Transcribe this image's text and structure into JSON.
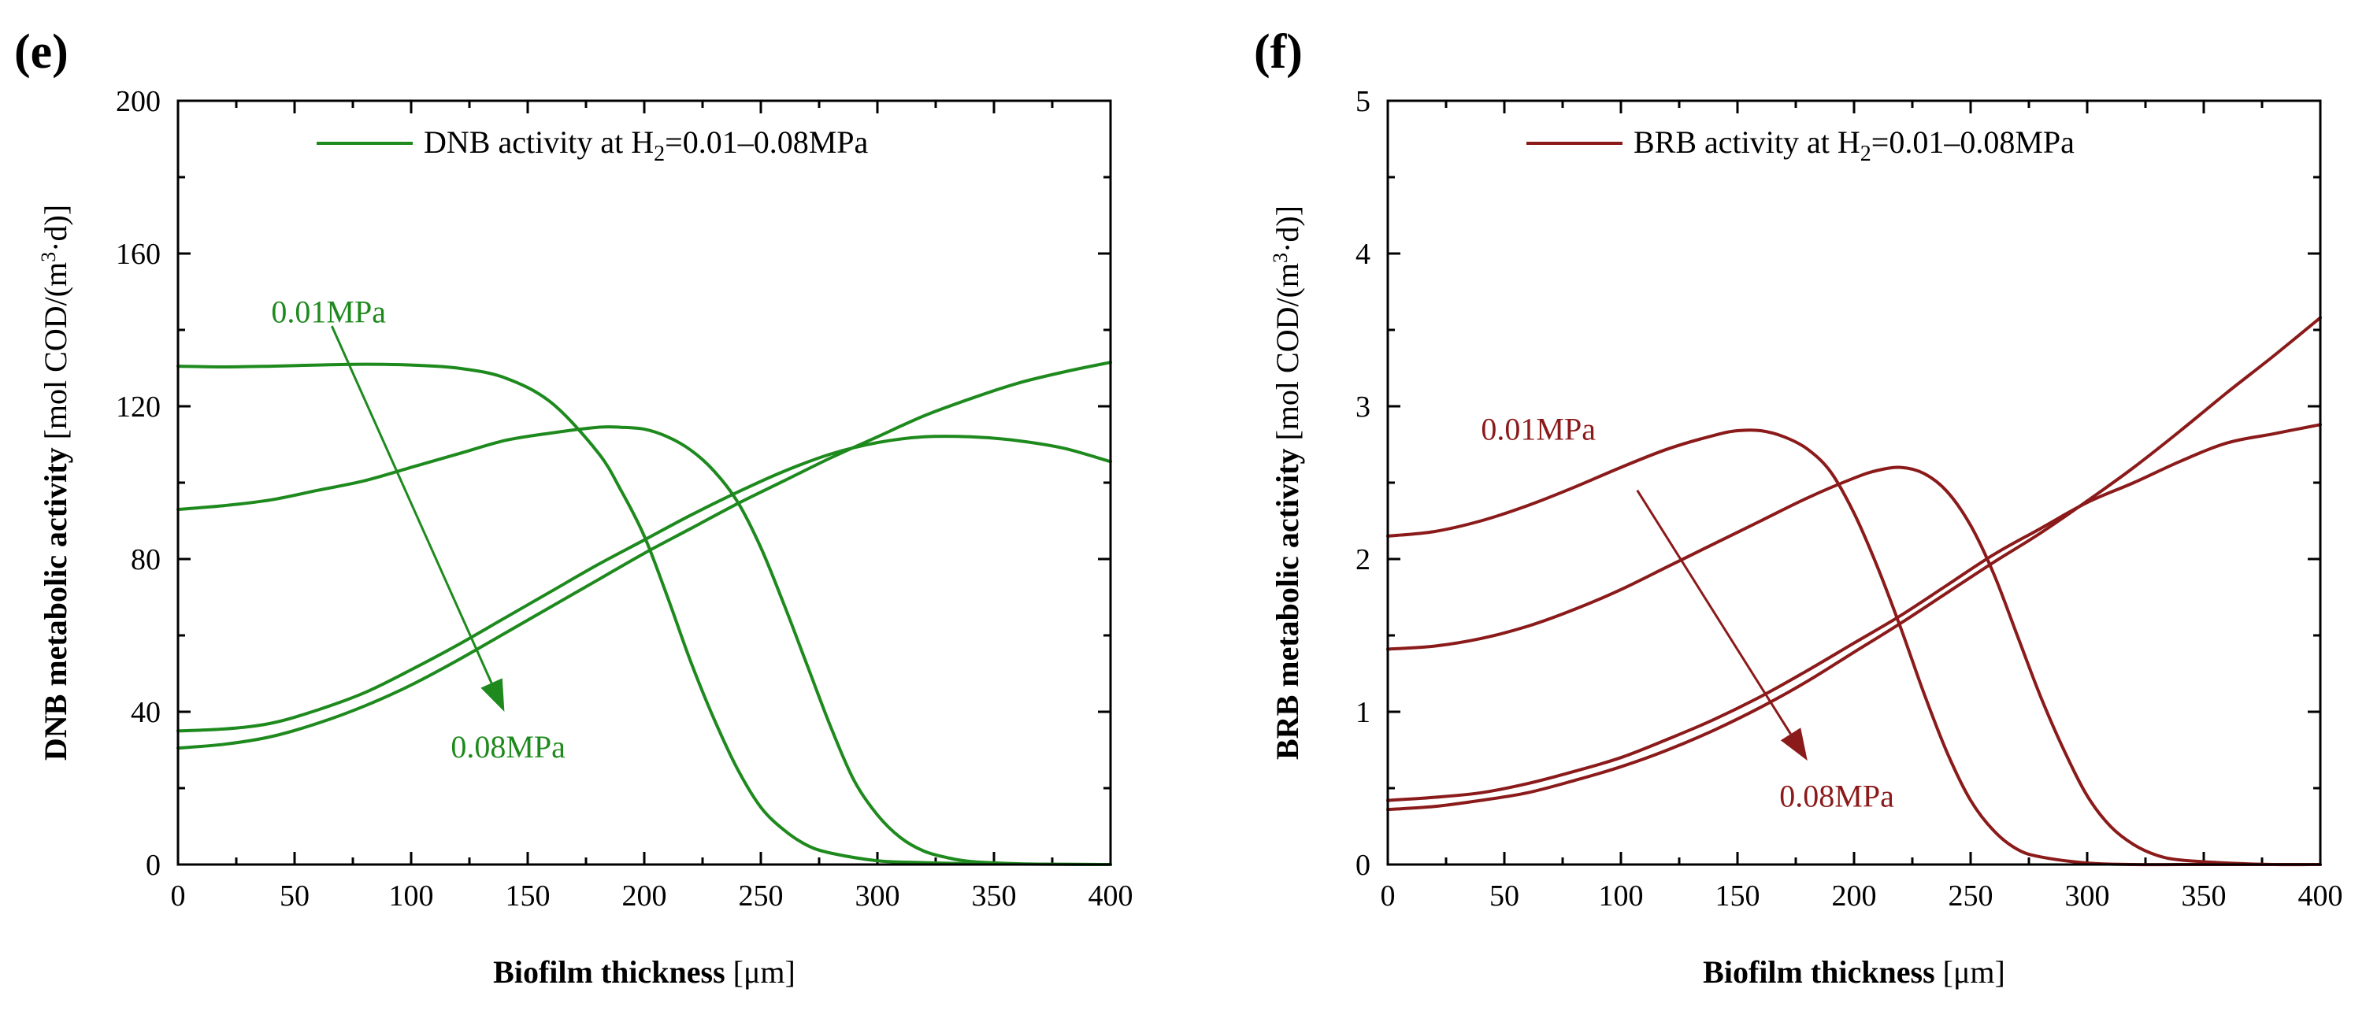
{
  "chart_data": [
    {
      "panel": "(e)",
      "type": "line",
      "xlabel_bold": "Biofilm thickness",
      "xlabel_unit": "[μm]",
      "ylabel_bold": "DNB metabolic activity",
      "ylabel_unit_pre": "[mol COD/(m",
      "ylabel_unit_sup": "3",
      "ylabel_unit_post": "·d)]",
      "xlim": [
        0,
        400
      ],
      "ylim": [
        0,
        200
      ],
      "xticks": [
        0,
        50,
        100,
        150,
        200,
        250,
        300,
        350,
        400
      ],
      "yticks": [
        0,
        40,
        80,
        120,
        160,
        200
      ],
      "legend": {
        "pre": "DNB activity at H",
        "sub": "2",
        "post": "=0.01–0.08MPa",
        "position": "top-center"
      },
      "color": "#1e8a1e",
      "annotations": {
        "start_label": "0.01MPa",
        "end_label": "0.08MPa",
        "arrow": {
          "from": [
            66,
            141
          ],
          "to": [
            140,
            40
          ]
        },
        "start_pos": [
          40,
          142
        ],
        "end_pos": [
          117,
          28
        ]
      },
      "series": [
        {
          "x": [
            0,
            20,
            40,
            60,
            80,
            100,
            120,
            140,
            160,
            180,
            190,
            200,
            210,
            220,
            230,
            240,
            250,
            260,
            270,
            280,
            300,
            320,
            340,
            360,
            380,
            400
          ],
          "y": [
            130.5,
            130.3,
            130.5,
            130.8,
            131,
            130.8,
            130,
            127.5,
            121,
            108,
            98,
            86,
            70,
            53,
            38,
            25,
            15,
            9,
            5,
            3,
            1,
            0.5,
            0.2,
            0.1,
            0.05,
            0
          ]
        },
        {
          "x": [
            0,
            20,
            40,
            60,
            80,
            100,
            120,
            140,
            160,
            180,
            190,
            200,
            210,
            220,
            230,
            240,
            250,
            260,
            270,
            280,
            290,
            300,
            310,
            320,
            330,
            340,
            360,
            380,
            400
          ],
          "y": [
            93,
            94,
            95.5,
            98,
            100.5,
            104,
            107.5,
            111,
            113,
            114.5,
            114.5,
            114,
            112,
            108.5,
            103,
            95,
            83,
            68,
            52,
            36,
            22,
            13,
            7,
            3.5,
            1.8,
            0.8,
            0.2,
            0.05,
            0
          ]
        },
        {
          "x": [
            0,
            20,
            40,
            60,
            80,
            100,
            120,
            140,
            160,
            180,
            200,
            220,
            240,
            260,
            280,
            300,
            320,
            340,
            360,
            380,
            400
          ],
          "y": [
            35,
            35.5,
            37,
            40.5,
            45,
            51,
            57.5,
            64.5,
            71.5,
            78.5,
            85,
            91.5,
            97.5,
            103,
            107.5,
            110.5,
            112,
            112,
            111,
            109,
            105.5
          ]
        },
        {
          "x": [
            0,
            20,
            40,
            60,
            80,
            100,
            120,
            140,
            160,
            180,
            200,
            220,
            240,
            260,
            280,
            300,
            320,
            340,
            360,
            380,
            400
          ],
          "y": [
            30.5,
            31.5,
            33.5,
            37,
            41.5,
            47,
            53.5,
            60.5,
            67.5,
            74.5,
            81.5,
            88,
            94.5,
            100.5,
            106.5,
            112,
            117.5,
            122,
            126,
            129,
            131.5
          ]
        }
      ]
    },
    {
      "panel": "(f)",
      "type": "line",
      "xlabel_bold": "Biofilm thickness",
      "xlabel_unit": "[μm]",
      "ylabel_bold": "BRB metabolic activity",
      "ylabel_unit_pre": "[mol COD/(m",
      "ylabel_unit_sup": "3",
      "ylabel_unit_post": "·d)]",
      "xlim": [
        0,
        400
      ],
      "ylim": [
        0,
        5
      ],
      "xticks": [
        0,
        50,
        100,
        150,
        200,
        250,
        300,
        350,
        400
      ],
      "yticks": [
        0,
        1,
        2,
        3,
        4,
        5
      ],
      "legend": {
        "pre": "BRB activity at H",
        "sub": "2",
        "post": "=0.01–0.08MPa",
        "position": "top-center"
      },
      "color": "#8b1a1a",
      "annotations": {
        "start_label": "0.01MPa",
        "end_label": "0.08MPa",
        "arrow": {
          "from": [
            107,
            2.45
          ],
          "to": [
            180,
            0.68
          ]
        },
        "start_pos": [
          40,
          2.78
        ],
        "end_pos": [
          168,
          0.38
        ]
      },
      "series": [
        {
          "x": [
            0,
            20,
            40,
            60,
            80,
            100,
            120,
            140,
            150,
            160,
            170,
            180,
            190,
            200,
            210,
            220,
            230,
            240,
            250,
            260,
            270,
            280,
            300,
            320,
            340,
            360,
            380,
            400
          ],
          "y": [
            2.15,
            2.18,
            2.25,
            2.35,
            2.47,
            2.6,
            2.72,
            2.81,
            2.84,
            2.84,
            2.8,
            2.72,
            2.57,
            2.3,
            1.95,
            1.55,
            1.12,
            0.73,
            0.42,
            0.22,
            0.1,
            0.05,
            0.01,
            0,
            0,
            0,
            0,
            0
          ]
        },
        {
          "x": [
            0,
            20,
            40,
            60,
            80,
            100,
            120,
            140,
            160,
            180,
            200,
            210,
            220,
            230,
            240,
            250,
            260,
            270,
            280,
            290,
            300,
            310,
            320,
            330,
            340,
            360,
            380,
            400
          ],
          "y": [
            1.41,
            1.43,
            1.48,
            1.56,
            1.67,
            1.8,
            1.95,
            2.1,
            2.25,
            2.4,
            2.53,
            2.58,
            2.6,
            2.56,
            2.44,
            2.22,
            1.9,
            1.5,
            1.1,
            0.75,
            0.45,
            0.25,
            0.13,
            0.06,
            0.03,
            0.01,
            0,
            0
          ]
        },
        {
          "x": [
            0,
            20,
            40,
            60,
            80,
            100,
            120,
            140,
            160,
            180,
            200,
            220,
            240,
            260,
            280,
            300,
            320,
            340,
            360,
            380,
            400
          ],
          "y": [
            0.42,
            0.44,
            0.47,
            0.53,
            0.61,
            0.7,
            0.82,
            0.95,
            1.1,
            1.27,
            1.45,
            1.63,
            1.83,
            2.03,
            2.2,
            2.37,
            2.5,
            2.64,
            2.76,
            2.82,
            2.88
          ]
        },
        {
          "x": [
            0,
            20,
            40,
            60,
            80,
            100,
            120,
            140,
            160,
            180,
            200,
            220,
            240,
            260,
            280,
            300,
            320,
            340,
            360,
            380,
            400
          ],
          "y": [
            0.36,
            0.38,
            0.42,
            0.47,
            0.55,
            0.64,
            0.75,
            0.88,
            1.03,
            1.2,
            1.39,
            1.58,
            1.78,
            1.98,
            2.17,
            2.38,
            2.6,
            2.84,
            3.09,
            3.33,
            3.58
          ]
        }
      ]
    }
  ]
}
